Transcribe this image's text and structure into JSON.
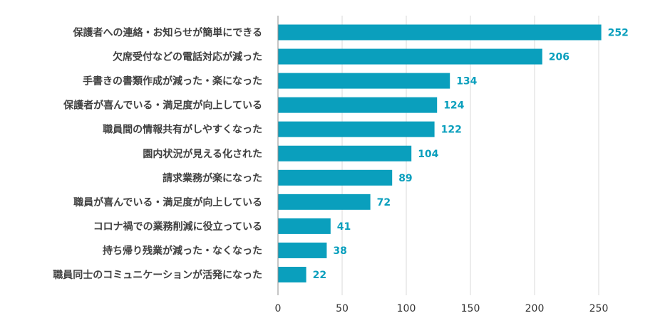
{
  "chart_data": {
    "type": "bar",
    "orientation": "horizontal",
    "title": "",
    "xlabel": "",
    "ylabel": "",
    "xlim": [
      0,
      250
    ],
    "xticks": [
      0,
      50,
      100,
      150,
      200,
      250
    ],
    "grid": true,
    "bar_color": "#0a9fbd",
    "label_color": "#0a9fbd",
    "categories": [
      "保護者への連絡・お知らせが簡単にできる",
      "欠席受付などの電話対応が減った",
      "手書きの書類作成が減った・楽になった",
      "保護者が喜んでいる・満足度が向上している",
      "職員間の情報共有がしやすくなった",
      "園内状況が見える化された",
      "請求業務が楽になった",
      "職員が喜んでいる・満足度が向上している",
      "コロナ禍での業務削減に役立っている",
      "持ち帰り残業が減った・なくなった",
      "職員同士のコミュニケーションが活発になった"
    ],
    "values": [
      252,
      206,
      134,
      124,
      122,
      104,
      89,
      72,
      41,
      38,
      22
    ]
  }
}
